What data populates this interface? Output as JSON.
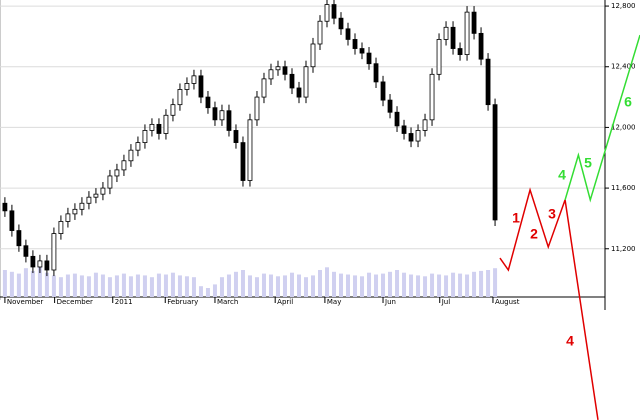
{
  "chart_data": {
    "type": "candlestick",
    "xlim": [
      -0.7,
      90.7
    ],
    "ylim": [
      10882,
      12840
    ],
    "yticks": [
      {
        "value": 11200,
        "label": "11,200"
      },
      {
        "value": 11600,
        "label": "11,600"
      },
      {
        "value": 12000,
        "label": "12,000"
      },
      {
        "value": 12400,
        "label": "12,400"
      },
      {
        "value": 12800,
        "label": "12,800"
      }
    ],
    "xticks": [
      {
        "value": 0,
        "label": "November"
      },
      {
        "value": 7.1,
        "label": "December"
      },
      {
        "value": 15.4,
        "label": "2011"
      },
      {
        "value": 22.9,
        "label": "February"
      },
      {
        "value": 30,
        "label": "March"
      },
      {
        "value": 38.6,
        "label": "April"
      },
      {
        "value": 45.7,
        "label": "May"
      },
      {
        "value": 54,
        "label": "Jun"
      },
      {
        "value": 62.1,
        "label": "Jul"
      },
      {
        "value": 69.7,
        "label": "August"
      }
    ],
    "grid": true,
    "open": [
      11500,
      11450,
      11320,
      11220,
      11150,
      11080,
      11120,
      11060,
      11300,
      11380,
      11430,
      11460,
      11500,
      11540,
      11560,
      11600,
      11680,
      11720,
      11780,
      11850,
      11900,
      11980,
      12020,
      11960,
      12080,
      12150,
      12250,
      12290,
      12340,
      12200,
      12130,
      12050,
      12110,
      11980,
      11900,
      11650,
      12050,
      12200,
      12320,
      12380,
      12400,
      12350,
      12260,
      12200,
      12400,
      12550,
      12700,
      12810,
      12720,
      12650,
      12580,
      12520,
      12490,
      12420,
      12300,
      12180,
      12100,
      12010,
      11960,
      11910,
      11980,
      12050,
      12350,
      12580,
      12660,
      12520,
      12480,
      12760,
      12620,
      12450,
      12150
    ],
    "high": [
      11540,
      11490,
      11360,
      11260,
      11190,
      11160,
      11160,
      11340,
      11420,
      11470,
      11500,
      11540,
      11580,
      11600,
      11640,
      11720,
      11760,
      11820,
      11890,
      11940,
      12020,
      12060,
      12060,
      12120,
      12190,
      12290,
      12330,
      12380,
      12380,
      12240,
      12170,
      12150,
      12150,
      12020,
      11940,
      12090,
      12240,
      12360,
      12420,
      12440,
      12440,
      12390,
      12300,
      12440,
      12590,
      12740,
      12850,
      12850,
      12760,
      12690,
      12620,
      12560,
      12530,
      12460,
      12340,
      12220,
      12140,
      12050,
      12000,
      12020,
      12090,
      12390,
      12620,
      12700,
      12700,
      12560,
      12800,
      12800,
      12660,
      12490,
      12190
    ],
    "low": [
      11410,
      11280,
      11180,
      11110,
      11040,
      11040,
      11020,
      11020,
      11260,
      11340,
      11390,
      11420,
      11460,
      11500,
      11520,
      11560,
      11640,
      11680,
      11740,
      11810,
      11860,
      11940,
      11920,
      11920,
      12040,
      12110,
      12210,
      12250,
      12160,
      12090,
      12010,
      12010,
      11940,
      11860,
      11610,
      11610,
      12010,
      12160,
      12280,
      12340,
      12310,
      12220,
      12160,
      12160,
      12360,
      12510,
      12660,
      12680,
      12610,
      12540,
      12480,
      12450,
      12380,
      12260,
      12140,
      12060,
      11970,
      11920,
      11870,
      11870,
      11940,
      12010,
      12310,
      12540,
      12480,
      12440,
      12440,
      12580,
      12410,
      12110,
      11350
    ],
    "close": [
      11450,
      11320,
      11220,
      11150,
      11080,
      11120,
      11060,
      11300,
      11380,
      11430,
      11460,
      11500,
      11540,
      11560,
      11600,
      11680,
      11720,
      11780,
      11850,
      11900,
      11980,
      12020,
      11960,
      12080,
      12150,
      12250,
      12290,
      12340,
      12200,
      12130,
      12050,
      12110,
      11980,
      11900,
      11650,
      12050,
      12200,
      12320,
      12380,
      12400,
      12350,
      12260,
      12200,
      12400,
      12550,
      12700,
      12810,
      12720,
      12650,
      12580,
      12520,
      12490,
      12420,
      12300,
      12180,
      12100,
      12010,
      11960,
      11910,
      11980,
      12050,
      12350,
      12580,
      12660,
      12520,
      12480,
      12760,
      12620,
      12450,
      12150,
      11390
    ],
    "volume": [
      30,
      28,
      26,
      32,
      29,
      35,
      27,
      24,
      22,
      25,
      26,
      24,
      23,
      27,
      25,
      22,
      24,
      26,
      23,
      25,
      24,
      22,
      26,
      25,
      27,
      24,
      23,
      22,
      12,
      10,
      14,
      22,
      25,
      28,
      30,
      24,
      22,
      26,
      25,
      23,
      24,
      27,
      25,
      22,
      24,
      30,
      33,
      28,
      26,
      25,
      24,
      23,
      27,
      25,
      26,
      28,
      30,
      27,
      25,
      24,
      23,
      26,
      25,
      24,
      27,
      26,
      25,
      28,
      29,
      30,
      32
    ],
    "volume_lim": [
      0,
      100
    ],
    "waves": [
      {
        "color": "#e00000",
        "x": [
          70.7,
          71.9,
          75,
          77.6,
          80,
          84.7
        ],
        "values": [
          11139,
          11060,
          11588,
          11212,
          11522,
          10072
        ]
      },
      {
        "color": "#33dd33",
        "x": [
          80,
          81.9,
          83.6,
          90.7
        ],
        "values": [
          11522,
          11818,
          11522,
          12609
        ]
      }
    ],
    "annotations": [
      {
        "text": "1",
        "color": "#e00000"
      },
      {
        "text": "2",
        "color": "#e00000"
      },
      {
        "text": "3",
        "color": "#e00000"
      },
      {
        "text": "4",
        "color": "#e00000"
      },
      {
        "text": "4",
        "color": "#33dd33"
      },
      {
        "text": "5",
        "color": "#33dd33"
      },
      {
        "text": "6",
        "color": "#33dd33"
      }
    ]
  }
}
